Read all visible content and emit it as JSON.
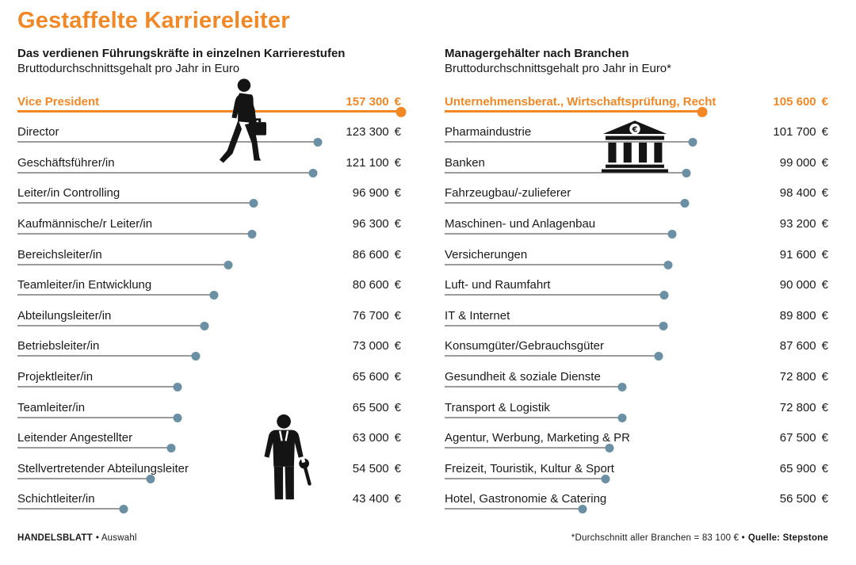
{
  "title": "Gestaffelte Karriereleiter",
  "colors": {
    "accent_orange": "#F18825",
    "dot_blue": "#6B90A3",
    "line_gray": "#9B9B9B",
    "text": "#1A1A1A"
  },
  "icons": {
    "left_top": "businessman-walking-icon",
    "left_bottom": "worker-wrench-icon",
    "right_top": "bank-building-icon",
    "bank_symbol": "€"
  },
  "footer": {
    "brand": "HANDELSBLATT",
    "brand_note": "• Auswahl",
    "note": "*Durchschnitt aller Branchen = 83 100 € •",
    "source": "Quelle: Stepstone"
  },
  "chart_data": [
    {
      "type": "bar",
      "orientation": "horizontal-lollipop",
      "title": "Das verdienen Führungskräfte in einzelnen Karrierestufen",
      "subtitle": "Bruttodurchschnittsgehalt pro Jahr in Euro",
      "unit": "€",
      "xlim": [
        0,
        157300
      ],
      "highlight_index": 0,
      "categories": [
        "Vice President",
        "Director",
        "Geschäftsführer/in",
        "Leiter/in Controlling",
        "Kaufmännische/r Leiter/in",
        "Bereichsleiter/in",
        "Teamleiter/in Entwicklung",
        "Abteilungsleiter/in",
        "Betriebsleiter/in",
        "Projektleiter/in",
        "Teamleiter/in",
        "Leitender Angestellter",
        "Stellvertretender Abteilungsleiter",
        "Schichtleiter/in"
      ],
      "values": [
        157300,
        123300,
        121100,
        96900,
        96300,
        86600,
        80600,
        76700,
        73000,
        65600,
        65500,
        63000,
        54500,
        43400
      ],
      "value_labels": [
        "157 300",
        "123 300",
        "121 100",
        "96 900",
        "96 300",
        "86 600",
        "80 600",
        "76 700",
        "73 000",
        "65 600",
        "65 500",
        "63 000",
        "54 500",
        "43 400"
      ]
    },
    {
      "type": "bar",
      "orientation": "horizontal-lollipop",
      "title": "Managergehälter nach Branchen",
      "subtitle": "Bruttodurchschnittsgehalt pro Jahr in Euro*",
      "unit": "€",
      "xlim": [
        0,
        157300
      ],
      "highlight_index": 0,
      "categories": [
        "Unternehmensberat., Wirtschaftsprüfung, Recht",
        "Pharmaindustrie",
        "Banken",
        "Fahrzeugbau/-zulieferer",
        "Maschinen- und Anlagenbau",
        "Versicherungen",
        "Luft- und Raumfahrt",
        "IT & Internet",
        "Konsumgüter/Gebrauchsgüter",
        "Gesundheit & soziale Dienste",
        "Transport & Logistik",
        "Agentur, Werbung, Marketing & PR",
        "Freizeit, Touristik, Kultur & Sport",
        "Hotel, Gastronomie & Catering"
      ],
      "values": [
        105600,
        101700,
        99000,
        98400,
        93200,
        91600,
        90000,
        89800,
        87600,
        72800,
        72800,
        67500,
        65900,
        56500
      ],
      "value_labels": [
        "105 600",
        "101 700",
        "99 000",
        "98 400",
        "93 200",
        "91 600",
        "90 000",
        "89 800",
        "87 600",
        "72 800",
        "72 800",
        "67 500",
        "65 900",
        "56 500"
      ]
    }
  ]
}
